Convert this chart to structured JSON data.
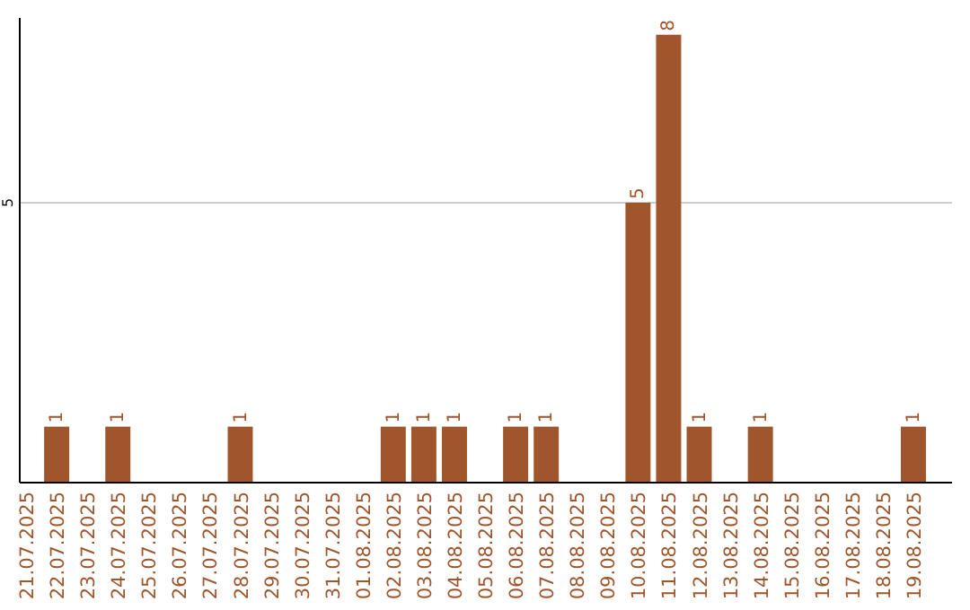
{
  "chart_data": {
    "type": "bar",
    "categories": [
      "21.07.2025",
      "22.07.2025",
      "23.07.2025",
      "24.07.2025",
      "25.07.2025",
      "26.07.2025",
      "27.07.2025",
      "28.07.2025",
      "29.07.2025",
      "30.07.2025",
      "31.07.2025",
      "01.08.2025",
      "02.08.2025",
      "03.08.2025",
      "04.08.2025",
      "05.08.2025",
      "06.08.2025",
      "07.08.2025",
      "08.08.2025",
      "09.08.2025",
      "10.08.2025",
      "11.08.2025",
      "12.08.2025",
      "13.08.2025",
      "14.08.2025",
      "15.08.2025",
      "16.08.2025",
      "17.08.2025",
      "18.08.2025",
      "19.08.2025"
    ],
    "values": [
      0,
      1,
      0,
      1,
      0,
      0,
      0,
      1,
      0,
      0,
      0,
      0,
      1,
      1,
      1,
      0,
      1,
      1,
      0,
      0,
      5,
      8,
      1,
      0,
      1,
      0,
      0,
      0,
      0,
      1
    ],
    "value_labels": [
      null,
      "1",
      null,
      "1",
      null,
      null,
      null,
      "1",
      null,
      null,
      null,
      null,
      "1",
      "1",
      "1",
      null,
      "1",
      "1",
      null,
      null,
      "5",
      "8",
      "1",
      null,
      "1",
      null,
      null,
      null,
      null,
      "1"
    ],
    "color": "#a0562c",
    "ylim": [
      0,
      8.3
    ],
    "yticks": [
      5
    ],
    "grid": "y"
  }
}
